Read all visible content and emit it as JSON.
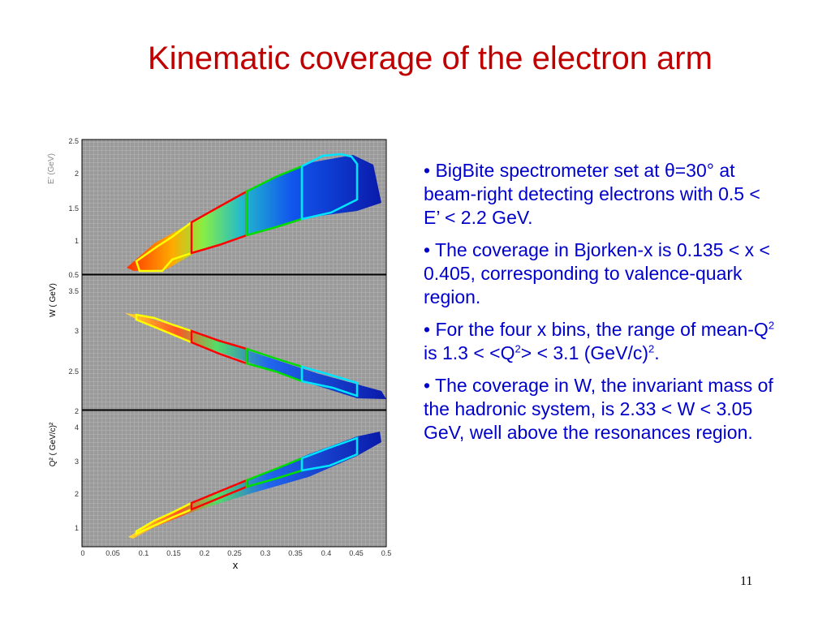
{
  "slide": {
    "title": "Kinematic coverage of the electron arm",
    "number": "11"
  },
  "chart_data": [
    {
      "type": "heatmap",
      "ylabel": "E’ (GeV)",
      "ylim": [
        0.5,
        2.5
      ],
      "yticks": [
        "0.5",
        "1",
        "1.5",
        "2",
        "2.5"
      ],
      "xlim": [
        0,
        0.5
      ],
      "grid": true,
      "bins": [
        {
          "name": "bin1",
          "color": "#ffff00",
          "x_range": [
            0.09,
            0.18
          ]
        },
        {
          "name": "bin2",
          "color": "#ff0000",
          "x_range": [
            0.18,
            0.27
          ]
        },
        {
          "name": "bin3",
          "color": "#00dd00",
          "x_range": [
            0.27,
            0.36
          ]
        },
        {
          "name": "bin4",
          "color": "#00e5ff",
          "x_range": [
            0.36,
            0.45
          ]
        }
      ]
    },
    {
      "type": "heatmap",
      "ylabel": "W ( GeV)",
      "ylim": [
        2,
        3.5
      ],
      "yticks": [
        "2",
        "2.5",
        "3",
        "3.5"
      ],
      "xlim": [
        0,
        0.5
      ],
      "grid": true
    },
    {
      "type": "heatmap",
      "ylabel": "Q² ( GeV/c)²",
      "ylim": [
        0.5,
        4.5
      ],
      "yticks": [
        "1",
        "2",
        "3",
        "4"
      ],
      "xlim": [
        0,
        0.5
      ],
      "xlabel": "x",
      "xticks": [
        "0",
        "0.05",
        "0.1",
        "0.15",
        "0.2",
        "0.25",
        "0.3",
        "0.35",
        "0.4",
        "0.45",
        "0.5"
      ],
      "grid": true
    }
  ],
  "bullets": [
    {
      "text": "• BigBite spectrometer set at θ=30° at beam-right detecting electrons with 0.5 < E’ < 2.2 GeV."
    },
    {
      "text": "• The coverage in Bjorken-x is 0.135 < x < 0.405, corresponding to valence-quark region."
    },
    {
      "p1": "• For the four x bins, the range of mean-Q",
      "sup1": "2",
      "p2": " is 1.3 <  <Q",
      "sup2": "2",
      "p3": ">  < 3.1 (GeV/c)",
      "sup3": "2",
      "p4": "."
    },
    {
      "text": "• The coverage in W, the invariant mass of the hadronic system, is 2.33 < W < 3.05 GeV, well above the resonances region."
    }
  ]
}
